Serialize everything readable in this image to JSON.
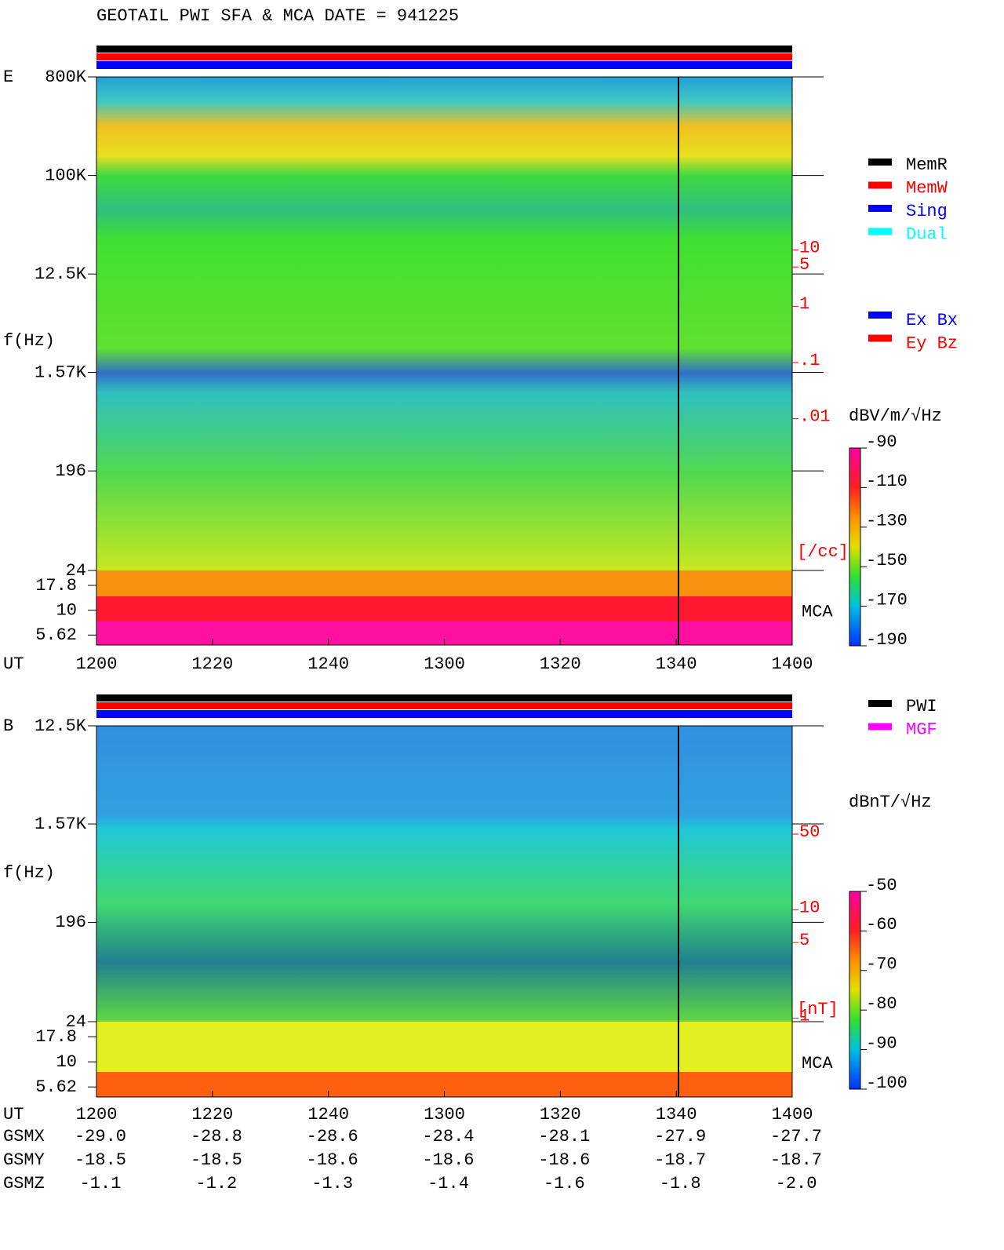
{
  "chart_data": [
    {
      "type": "spectrogram",
      "title": "GEOTAIL  PWI SFA & MCA   DATE = 941225",
      "panel_label": "E",
      "ylabel": "f(Hz)",
      "xlabel": "UT",
      "categories": [
        "1200",
        "1220",
        "1240",
        "1300",
        "1320",
        "1340",
        "1400"
      ],
      "log_y": true,
      "ylim": [
        24,
        800000
      ],
      "yticks": [
        {
          "value": 800000,
          "label": "800K"
        },
        {
          "value": 100000,
          "label": "100K"
        },
        {
          "value": 12500,
          "label": "12.5K"
        },
        {
          "value": 1570,
          "label": "1.57K"
        },
        196,
        24
      ],
      "mca_label": "MCA",
      "mca_ticks": [
        17.8,
        10,
        5.62
      ],
      "status_legend": [
        {
          "name": "MemR",
          "color": "#000000"
        },
        {
          "name": "MemW",
          "color": "#ff0000"
        },
        {
          "name": "Sing",
          "color": "#0000ff"
        },
        {
          "name": "Dual",
          "color": "#00ffff"
        }
      ],
      "component_legend": [
        {
          "name": "Ex Bx",
          "color": "#0000ff"
        },
        {
          "name": "Ey Bz",
          "color": "#ff0000"
        }
      ],
      "colorbar_label": "dBV/m/√Hz",
      "clim": [
        -190,
        -90
      ],
      "cticks": [
        -90,
        -110,
        -130,
        -150,
        -170,
        -190
      ],
      "y2_label": "[/cc]",
      "y2_color": "#ff0000",
      "y2lim": [
        2e-05,
        12000
      ],
      "y2ticks": [
        10,
        5,
        1,
        {
          "value": 0.1,
          "label": ".1"
        },
        {
          "value": 0.01,
          "label": ".01"
        }
      ]
    },
    {
      "type": "spectrogram",
      "panel_label": "B",
      "ylabel": "f(Hz)",
      "xlabel": "UT",
      "categories": [
        "1200",
        "1220",
        "1240",
        "1300",
        "1320",
        "1340",
        "1400"
      ],
      "log_y": true,
      "ylim": [
        24,
        12500
      ],
      "yticks": [
        {
          "value": 12500,
          "label": "12.5K"
        },
        {
          "value": 1570,
          "label": "1.57K"
        },
        196,
        24
      ],
      "mca_label": "MCA",
      "mca_ticks": [
        17.8,
        10,
        5.62
      ],
      "status_legend": [
        {
          "name": "PWI",
          "color": "#000000"
        },
        {
          "name": "MGF",
          "color": "#ff00ff"
        }
      ],
      "colorbar_label": "dBnT/√Hz",
      "clim": [
        -100,
        -50
      ],
      "cticks": [
        -50,
        -60,
        -70,
        -80,
        -90,
        -100
      ],
      "y2_label": "[nT]",
      "y2_color": "#ff0000",
      "y2lim": [
        0.93,
        500
      ],
      "y2ticks": [
        50,
        10,
        5,
        1
      ]
    }
  ],
  "orbit": {
    "rows": [
      {
        "label": "GSMX",
        "values": [
          "-29.0",
          "-28.8",
          "-28.6",
          "-28.4",
          "-28.1",
          "-27.9",
          "-27.7"
        ]
      },
      {
        "label": "GSMY",
        "values": [
          "-18.5",
          "-18.5",
          "-18.6",
          "-18.6",
          "-18.6",
          "-18.7",
          "-18.7"
        ]
      },
      {
        "label": "GSMZ",
        "values": [
          "-1.1",
          "-1.2",
          "-1.3",
          "-1.4",
          "-1.6",
          "-1.8",
          "-2.0"
        ]
      }
    ]
  }
}
